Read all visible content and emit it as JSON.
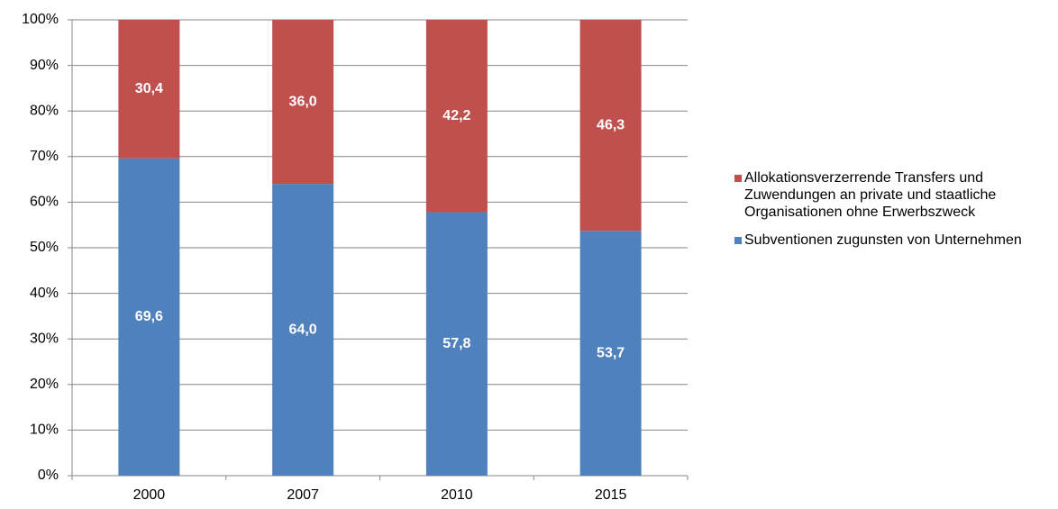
{
  "chart_data": {
    "type": "stacked_bar",
    "categories": [
      "2000",
      "2007",
      "2010",
      "2015"
    ],
    "series": [
      {
        "name": "Subventionen zugunsten von Unternehmen",
        "color": "#4f81bd",
        "values": [
          69.6,
          64.0,
          57.8,
          53.7
        ],
        "value_labels": [
          "69,6",
          "64,0",
          "57,8",
          "53,7"
        ]
      },
      {
        "name": "Allokationsverzerrende Transfers und Zuwendungen  an private und staatliche Organisationen ohne Erwerbszweck",
        "color": "#c0504d",
        "values": [
          30.4,
          36.0,
          42.2,
          46.3
        ],
        "value_labels": [
          "30,4",
          "36,0",
          "42,2",
          "46,3"
        ]
      }
    ],
    "ylim": [
      0,
      100
    ],
    "yticks": [
      {
        "value": 0,
        "label": "0%"
      },
      {
        "value": 10,
        "label": "10%"
      },
      {
        "value": 20,
        "label": "20%"
      },
      {
        "value": 30,
        "label": "30%"
      },
      {
        "value": 40,
        "label": "40%"
      },
      {
        "value": 50,
        "label": "50%"
      },
      {
        "value": 60,
        "label": "60%"
      },
      {
        "value": 70,
        "label": "70%"
      },
      {
        "value": 80,
        "label": "80%"
      },
      {
        "value": 90,
        "label": "90%"
      },
      {
        "value": 100,
        "label": "100%"
      }
    ],
    "grid": true,
    "legend": "right"
  }
}
